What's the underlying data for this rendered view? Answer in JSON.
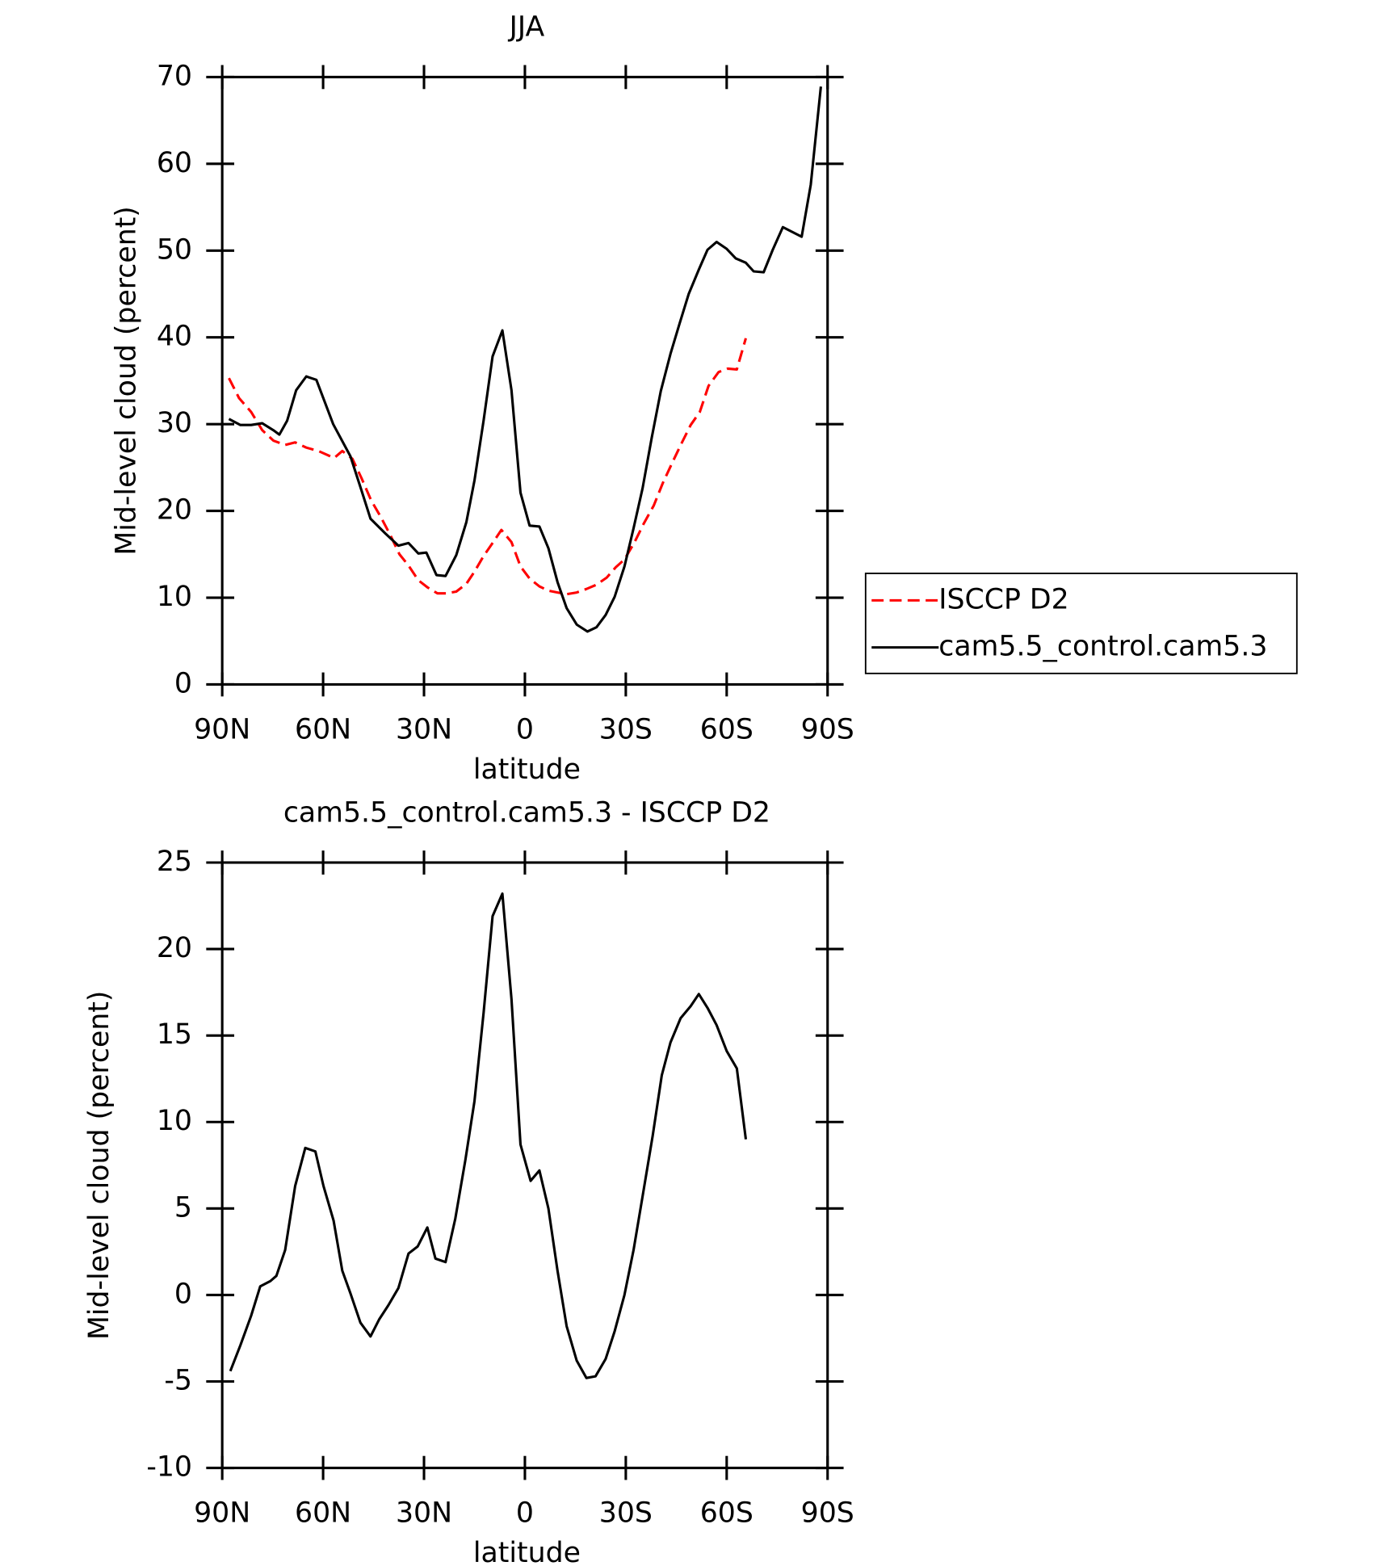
{
  "chart_data": [
    {
      "type": "line",
      "title": "JJA",
      "xlabel": "latitude",
      "ylabel": "Mid-level cloud (percent)",
      "xlim": [
        90,
        -90
      ],
      "ylim": [
        0,
        70
      ],
      "xticks": [
        {
          "value": 90,
          "label": "90N"
        },
        {
          "value": 60,
          "label": "60N"
        },
        {
          "value": 30,
          "label": "30N"
        },
        0,
        {
          "value": -30,
          "label": "30S"
        },
        {
          "value": -60,
          "label": "60S"
        },
        {
          "value": -90,
          "label": "90S"
        }
      ],
      "yticks": [
        0,
        10,
        20,
        30,
        40,
        50,
        60,
        70
      ],
      "legend": "right",
      "series": [
        {
          "name": "ISCCP D2",
          "color": "#ff0000",
          "dashed": true,
          "x": [
            88,
            85,
            81.4,
            78.1,
            74.8,
            71.3,
            68.3,
            65,
            61.4,
            56.7,
            54.3,
            51.3,
            48.6,
            45.7,
            43,
            40,
            37.3,
            34.6,
            31.7,
            29,
            26,
            23.3,
            20.4,
            17.4,
            15,
            12.3,
            9.6,
            7,
            4,
            1.3,
            -1.4,
            -4.3,
            -7,
            -9.7,
            -12.4,
            -15.4,
            -18.3,
            -21.3,
            -24.3,
            -27,
            -29.6,
            -32.6,
            -35.3,
            -38.3,
            -41,
            -44,
            -46.6,
            -49.3,
            -52,
            -54.6,
            -57.6,
            -60.3,
            -63,
            -65.7
          ],
          "values": [
            35.3,
            33,
            31.4,
            29.3,
            28.1,
            27.6,
            27.9,
            27.3,
            26.9,
            26.1,
            26.9,
            26,
            23.8,
            21.2,
            19.4,
            17.2,
            15,
            13.7,
            12,
            11.2,
            10.5,
            10.5,
            10.7,
            11.6,
            13,
            14.8,
            16.3,
            17.8,
            16.4,
            13.6,
            12.2,
            11.3,
            10.8,
            10.6,
            10.4,
            10.6,
            11,
            11.5,
            12.3,
            13.5,
            14.4,
            16.4,
            18.5,
            20.6,
            23.2,
            25.7,
            27.8,
            29.9,
            31.4,
            34.4,
            36,
            36.4,
            36.3,
            39.9
          ]
        },
        {
          "name": "cam5.5_control.cam5.3",
          "color": "#000000",
          "x": [
            88,
            84.6,
            81.4,
            78.1,
            74.8,
            73,
            70.7,
            68,
            65,
            62,
            57,
            51.9,
            48.6,
            45.9,
            41.5,
            37.6,
            34.6,
            31.7,
            29.3,
            26.3,
            23.6,
            20.4,
            17.4,
            15,
            12.3,
            9.6,
            6.7,
            4,
            1.3,
            -1.4,
            -4.3,
            -7,
            -9.7,
            -12.4,
            -15.4,
            -18.6,
            -21.3,
            -24,
            -26.7,
            -29.6,
            -32.3,
            -35,
            -37.7,
            -40.4,
            -43.3,
            -46,
            -48.7,
            -51.7,
            -54.3,
            -57,
            -60,
            -62.7,
            -65.7,
            -68,
            -71,
            -73.7,
            -76.7,
            -79.3,
            -82.3,
            -85,
            -88
          ],
          "values": [
            30.6,
            29.9,
            29.9,
            30.1,
            29.3,
            28.8,
            30.4,
            33.9,
            35.5,
            35.1,
            30,
            26.3,
            22.4,
            19.1,
            17.4,
            16,
            16.3,
            15.1,
            15.2,
            12.6,
            12.5,
            14.9,
            18.7,
            23.5,
            30.4,
            37.8,
            40.8,
            33.9,
            22.1,
            18.3,
            18.2,
            15.7,
            11.8,
            8.8,
            6.9,
            6.1,
            6.6,
            8,
            10.1,
            13.6,
            18,
            22.6,
            28.4,
            33.8,
            38.1,
            41.6,
            45,
            47.8,
            50.1,
            51,
            50.2,
            49.1,
            48.6,
            47.6,
            47.5,
            50.1,
            52.7,
            52.2,
            51.6,
            57.6,
            68.9
          ]
        }
      ]
    },
    {
      "type": "line",
      "title": "cam5.5_control.cam5.3 - ISCCP D2",
      "xlabel": "latitude",
      "ylabel": "Mid-level cloud (percent)",
      "xlim": [
        90,
        -90
      ],
      "ylim": [
        -10,
        25
      ],
      "xticks": [
        {
          "value": 90,
          "label": "90N"
        },
        {
          "value": 60,
          "label": "60N"
        },
        {
          "value": 30,
          "label": "30N"
        },
        0,
        {
          "value": -30,
          "label": "30S"
        },
        {
          "value": -60,
          "label": "60S"
        },
        {
          "value": -90,
          "label": "90S"
        }
      ],
      "yticks": [
        -10,
        -5,
        0,
        5,
        10,
        15,
        20,
        25
      ],
      "series": [
        {
          "color": "#000000",
          "x": [
            87.6,
            84.6,
            81.4,
            78.7,
            75.7,
            73.9,
            71.3,
            68.3,
            65.3,
            62.3,
            59.9,
            56.9,
            54.3,
            51.9,
            48.9,
            45.9,
            43.3,
            40.6,
            37.6,
            34.6,
            31.9,
            29,
            26.6,
            23.6,
            20.7,
            17.7,
            15,
            12.3,
            9.6,
            6.7,
            4,
            1.3,
            -1.7,
            -4.3,
            -7,
            -9.7,
            -12.4,
            -15.4,
            -18.3,
            -21,
            -24,
            -26.7,
            -29.6,
            -32.3,
            -35,
            -38,
            -40.7,
            -43.3,
            -46.3,
            -49.3,
            -51.7,
            -54.3,
            -57,
            -60,
            -63,
            -65.7
          ],
          "values": [
            -4.4,
            -2.9,
            -1.2,
            0.5,
            0.8,
            1.1,
            2.6,
            6.3,
            8.5,
            8.3,
            6.3,
            4.3,
            1.4,
            0.1,
            -1.6,
            -2.4,
            -1.4,
            -0.6,
            0.4,
            2.4,
            2.8,
            3.9,
            2.1,
            1.9,
            4.4,
            7.8,
            11.2,
            16.3,
            21.9,
            23.2,
            17.1,
            8.7,
            6.6,
            7.2,
            5,
            1.4,
            -1.8,
            -3.8,
            -4.8,
            -4.7,
            -3.7,
            -2.1,
            0,
            2.6,
            5.7,
            9.2,
            12.7,
            14.6,
            16,
            16.7,
            17.4,
            16.6,
            15.6,
            14.1,
            13.1,
            9
          ]
        }
      ]
    }
  ]
}
